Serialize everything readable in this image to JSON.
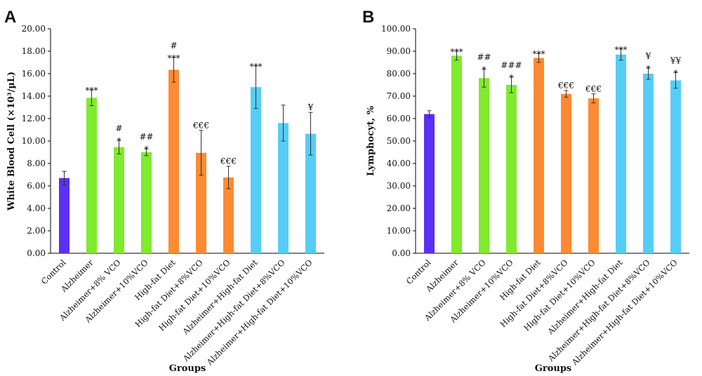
{
  "panels": [
    {
      "letter": "A",
      "chart_data": {
        "type": "bar",
        "ylabel": "White Blood Cell (×10³/µL)",
        "xlabel": "Groups",
        "ylim": [
          0,
          20
        ],
        "yticks": [
          "0.00",
          "2.00",
          "4.00",
          "6.00",
          "8.00",
          "10.00",
          "12.00",
          "14.00",
          "16.00",
          "18.00",
          "20.00"
        ],
        "ytick_values": [
          0,
          2,
          4,
          6,
          8,
          10,
          12,
          14,
          16,
          18,
          20
        ],
        "categories": [
          "Control",
          "Alzheimer",
          "Alzheimer+8% VCO",
          "Alzheimer+10%VCO",
          "High-fat Diet",
          "High-fat Diet+8%VCO",
          "High-fat Diet+10%VCO",
          "Alzheimer+High-fat Diet",
          "Alzheimer+High-fat Diet+8%VCO",
          "Alzheimer+High-fat Diet+10%VCO"
        ],
        "values": [
          6.7,
          13.85,
          9.45,
          9.0,
          16.35,
          8.95,
          6.75,
          14.8,
          11.6,
          10.65
        ],
        "errors": [
          0.6,
          0.7,
          0.6,
          0.3,
          1.1,
          2.0,
          1.0,
          1.9,
          1.6,
          1.9
        ],
        "colors": [
          "#5b2ff5",
          "#7fea2e",
          "#7fea2e",
          "#7fea2e",
          "#ff8a33",
          "#ff8a33",
          "#ff8a33",
          "#56cdf7",
          "#56cdf7",
          "#56cdf7"
        ],
        "significance": [
          [],
          [
            "***"
          ],
          [
            "#",
            "*"
          ],
          [
            "##",
            "*"
          ],
          [
            "#",
            "***"
          ],
          [
            "€€€"
          ],
          [
            "€€€"
          ],
          [
            "***"
          ],
          [],
          [
            "¥"
          ]
        ],
        "grid": false
      }
    },
    {
      "letter": "B",
      "chart_data": {
        "type": "bar",
        "ylabel": "Lymphocyt, %",
        "xlabel": "Groups",
        "ylim": [
          0,
          100
        ],
        "yticks": [
          "0.00",
          "10.00",
          "20.00",
          "30.00",
          "40.00",
          "50.00",
          "60.00",
          "70.00",
          "80.00",
          "90.00",
          "100.00"
        ],
        "ytick_values": [
          0,
          10,
          20,
          30,
          40,
          50,
          60,
          70,
          80,
          90,
          100
        ],
        "categories": [
          "Control",
          "Alzheimer",
          "Alzheimer+8% VCO",
          "Alzheimer+10%VCO",
          "High-fat Diet",
          "High-fat Diet+8%VCO",
          "High-fat Diet+10%VCO",
          "Alzheimer+High-fat Diet",
          "Alzheimer+High-fat Diet+8%VCO",
          "Alzheimer+High-fat Diet+10%VCO"
        ],
        "values": [
          62.0,
          88.0,
          78.0,
          75.0,
          87.0,
          71.0,
          69.0,
          88.5,
          80.0,
          77.0
        ],
        "errors": [
          1.5,
          2.0,
          4.0,
          3.5,
          2.0,
          1.5,
          2.0,
          2.5,
          2.5,
          3.5
        ],
        "colors": [
          "#5b2ff5",
          "#7fea2e",
          "#7fea2e",
          "#7fea2e",
          "#ff8a33",
          "#ff8a33",
          "#ff8a33",
          "#56cdf7",
          "#56cdf7",
          "#56cdf7"
        ],
        "significance": [
          [],
          [
            "***"
          ],
          [
            "##",
            "*"
          ],
          [
            "###",
            "*"
          ],
          [
            "***"
          ],
          [
            "€€€"
          ],
          [
            "€€€"
          ],
          [
            "***"
          ],
          [
            "¥",
            "*"
          ],
          [
            "¥¥",
            "*"
          ]
        ],
        "grid": false
      }
    }
  ]
}
